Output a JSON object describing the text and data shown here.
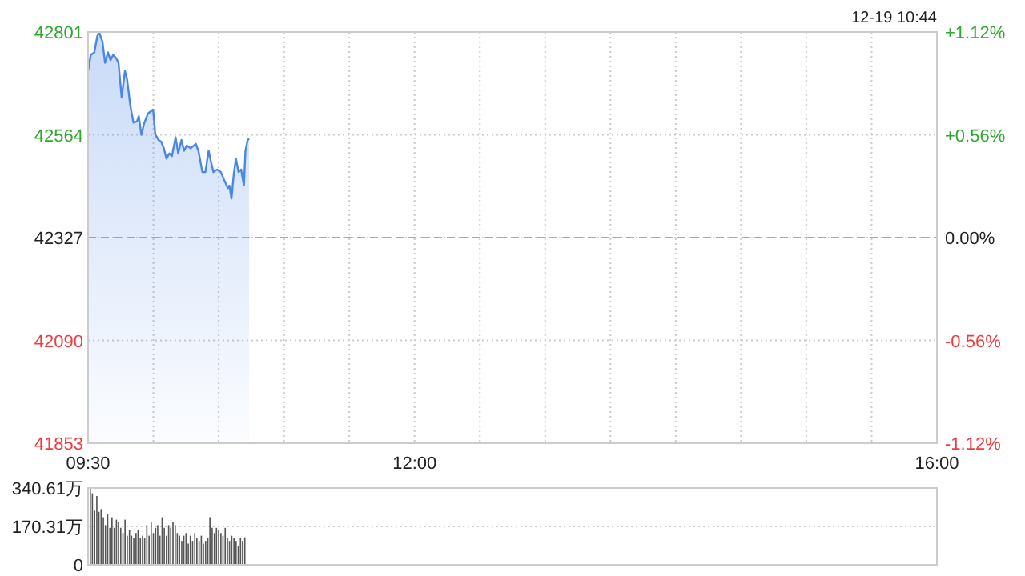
{
  "chart_data": [
    {
      "type": "area",
      "annotations": [
        "12-19 10:44"
      ],
      "x": [
        9.5,
        9.52,
        9.548,
        9.57,
        9.585,
        9.61,
        9.63,
        9.652,
        9.672,
        9.692,
        9.712,
        9.733,
        9.757,
        9.782,
        9.798,
        9.823,
        9.847,
        9.875,
        9.888,
        9.908,
        9.928,
        9.958,
        9.998,
        10.015,
        10.04,
        10.06,
        10.08,
        10.1,
        10.122,
        10.142,
        10.17,
        10.19,
        10.215,
        10.235,
        10.255,
        10.285,
        10.325,
        10.345,
        10.375,
        10.398,
        10.423,
        10.44,
        10.46,
        10.488,
        10.517,
        10.542,
        10.57,
        10.582,
        10.598,
        10.615,
        10.632,
        10.652,
        10.672,
        10.693,
        10.705,
        10.722,
        10.733
      ],
      "series": [
        {
          "color": "#4a86e8",
          "values": [
            42711,
            42748,
            42754,
            42791,
            42800,
            42779,
            42730,
            42754,
            42736,
            42748,
            42742,
            42730,
            42650,
            42711,
            42693,
            42632,
            42592,
            42595,
            42607,
            42564,
            42589,
            42613,
            42622,
            42564,
            42552,
            42548,
            42533,
            42509,
            42521,
            42515,
            42558,
            42521,
            42552,
            42527,
            42539,
            42533,
            42543,
            42527,
            42478,
            42478,
            42527,
            42503,
            42478,
            42484,
            42478,
            42460,
            42441,
            42447,
            42417,
            42472,
            42509,
            42478,
            42484,
            42447,
            42527,
            42552,
            42555
          ]
        }
      ],
      "xlim": [
        9.5,
        16
      ],
      "xticks": [
        {
          "value": 9.5,
          "label": "09:30"
        },
        {
          "value": 10,
          "label": null
        },
        {
          "value": 10.5,
          "label": null
        },
        {
          "value": 11,
          "label": null
        },
        {
          "value": 11.5,
          "label": null
        },
        {
          "value": 12,
          "label": "12:00"
        },
        {
          "value": 12.5,
          "label": null
        },
        {
          "value": 13,
          "label": null
        },
        {
          "value": 13.5,
          "label": null
        },
        {
          "value": 14,
          "label": null
        },
        {
          "value": 14.5,
          "label": null
        },
        {
          "value": 15,
          "label": null
        },
        {
          "value": 15.5,
          "label": null
        },
        {
          "value": 16,
          "label": "16:00"
        }
      ],
      "ylim": [
        41853,
        42801
      ],
      "yticks": [
        41853,
        42090,
        42327,
        42564,
        42801
      ],
      "y2lim": [
        -1.12,
        1.12
      ],
      "y2ticks": [
        {
          "value": -1.12,
          "label": "-1.12%"
        },
        {
          "value": -0.56,
          "label": "-0.56%"
        },
        {
          "value": 0,
          "label": "0.00%"
        },
        {
          "value": 0.56,
          "label": "+0.56%"
        },
        {
          "value": 1.12,
          "label": "+1.12%"
        }
      ],
      "ref_lines": [
        {
          "axis": "y",
          "value": 42327,
          "line_style": "dashed",
          "color": "#aaaaaa"
        }
      ],
      "grid": true
    },
    {
      "type": "bar",
      "color": "#555555",
      "x": [
        9.517,
        9.533,
        9.55,
        9.567,
        9.583,
        9.6,
        9.617,
        9.633,
        9.65,
        9.667,
        9.683,
        9.7,
        9.717,
        9.733,
        9.75,
        9.767,
        9.783,
        9.8,
        9.817,
        9.833,
        9.85,
        9.867,
        9.883,
        9.9,
        9.917,
        9.933,
        9.95,
        9.967,
        9.983,
        10.0,
        10.017,
        10.033,
        10.05,
        10.067,
        10.083,
        10.1,
        10.117,
        10.133,
        10.15,
        10.167,
        10.183,
        10.2,
        10.217,
        10.233,
        10.25,
        10.267,
        10.283,
        10.3,
        10.317,
        10.333,
        10.35,
        10.367,
        10.383,
        10.4,
        10.417,
        10.433,
        10.45,
        10.467,
        10.483,
        10.5,
        10.517,
        10.533,
        10.55,
        10.567,
        10.583,
        10.6,
        10.617,
        10.633,
        10.65,
        10.667,
        10.683,
        10.7
      ],
      "values": [
        340,
        317,
        240,
        305,
        235,
        247,
        211,
        176,
        223,
        164,
        211,
        164,
        200,
        188,
        164,
        141,
        200,
        129,
        153,
        129,
        117,
        141,
        153,
        117,
        129,
        117,
        176,
        129,
        188,
        141,
        164,
        176,
        129,
        211,
        164,
        129,
        176,
        164,
        188,
        176,
        141,
        129,
        106,
        129,
        141,
        94,
        129,
        106,
        141,
        117,
        106,
        129,
        94,
        106,
        117,
        211,
        164,
        141,
        164,
        153,
        141,
        129,
        164,
        117,
        106,
        129,
        117,
        106,
        82,
        117,
        106,
        122
      ],
      "xlim": [
        9.5,
        16
      ],
      "ylim": [
        0,
        340.61
      ],
      "yticks": [
        0,
        {
          "value": 170.31,
          "label": "170.31万"
        },
        {
          "value": 340.61,
          "label": "340.61万"
        }
      ],
      "tick_labels": "y",
      "grid": "y"
    }
  ]
}
